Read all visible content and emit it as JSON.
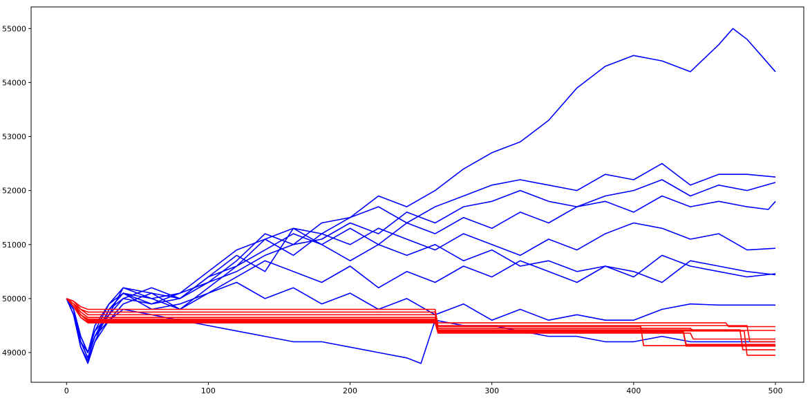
{
  "chart_data": {
    "type": "line",
    "title": "",
    "xlabel": "",
    "ylabel": "",
    "xlim": [
      -25,
      520
    ],
    "ylim": [
      48450,
      55400
    ],
    "grid": false,
    "legend": "none",
    "xticks": [
      {
        "value": 0,
        "label": "0"
      },
      {
        "value": 100,
        "label": "100"
      },
      {
        "value": 200,
        "label": "200"
      },
      {
        "value": 300,
        "label": "300"
      },
      {
        "value": 400,
        "label": "400"
      },
      {
        "value": 500,
        "label": "500"
      }
    ],
    "yticks": [
      {
        "value": 49000,
        "label": "49000"
      },
      {
        "value": 50000,
        "label": "50000"
      },
      {
        "value": 51000,
        "label": "51000"
      },
      {
        "value": 52000,
        "label": "52000"
      },
      {
        "value": 53000,
        "label": "53000"
      },
      {
        "value": 54000,
        "label": "54000"
      },
      {
        "value": 55000,
        "label": "55000"
      }
    ],
    "colors": {
      "blue": "#0000ff",
      "red": "#ff0000"
    },
    "series": [
      {
        "color": "#0000ff",
        "x": [
          0,
          5,
          10,
          15,
          20,
          30,
          40,
          60,
          80,
          100,
          120,
          140,
          160,
          180,
          200,
          220,
          240,
          260,
          280,
          300,
          320,
          340,
          360,
          380,
          400,
          420,
          440,
          460,
          470,
          480,
          490,
          500
        ],
        "y": [
          50000,
          49800,
          49300,
          49000,
          49300,
          49700,
          50200,
          50100,
          50000,
          50300,
          50700,
          51200,
          51000,
          51400,
          51500,
          51900,
          51700,
          52000,
          52400,
          52700,
          52900,
          53300,
          53900,
          54300,
          54500,
          54400,
          54200,
          54700,
          55000,
          54800,
          54500,
          54200
        ]
      },
      {
        "color": "#0000ff",
        "x": [
          0,
          5,
          10,
          15,
          20,
          30,
          40,
          60,
          80,
          100,
          120,
          140,
          160,
          180,
          200,
          220,
          240,
          260,
          280,
          300,
          320,
          340,
          360,
          380,
          400,
          420,
          440,
          460,
          480,
          500
        ],
        "y": [
          50000,
          49700,
          49200,
          48900,
          49300,
          49800,
          50100,
          49900,
          50000,
          50400,
          50600,
          51100,
          51300,
          51200,
          51500,
          51700,
          51400,
          51700,
          51900,
          52100,
          52200,
          52100,
          52000,
          52300,
          52200,
          52500,
          52100,
          52300,
          52300,
          52250
        ]
      },
      {
        "color": "#0000ff",
        "x": [
          0,
          5,
          10,
          15,
          20,
          30,
          40,
          60,
          80,
          100,
          120,
          140,
          160,
          180,
          200,
          220,
          240,
          260,
          280,
          300,
          320,
          340,
          360,
          380,
          400,
          420,
          440,
          460,
          480,
          500
        ],
        "y": [
          50000,
          49800,
          49200,
          49000,
          49400,
          49900,
          50200,
          50000,
          50100,
          50300,
          50500,
          50800,
          51000,
          51100,
          51400,
          51200,
          51600,
          51400,
          51700,
          51800,
          52000,
          51800,
          51700,
          51900,
          52000,
          52200,
          51900,
          52100,
          52000,
          52150
        ]
      },
      {
        "color": "#0000ff",
        "x": [
          0,
          5,
          10,
          15,
          20,
          30,
          40,
          60,
          80,
          100,
          120,
          140,
          160,
          180,
          200,
          220,
          240,
          260,
          280,
          300,
          320,
          340,
          360,
          380,
          400,
          420,
          440,
          460,
          480,
          495,
          500
        ],
        "y": [
          50000,
          49700,
          49100,
          48850,
          49200,
          49800,
          50100,
          50000,
          49800,
          50200,
          50600,
          50900,
          51200,
          51000,
          51300,
          51000,
          51400,
          51200,
          51500,
          51300,
          51600,
          51400,
          51700,
          51800,
          51600,
          51900,
          51700,
          51800,
          51700,
          51650,
          51800
        ]
      },
      {
        "color": "#0000ff",
        "x": [
          0,
          5,
          10,
          15,
          20,
          30,
          40,
          60,
          80,
          100,
          120,
          140,
          160,
          180,
          200,
          220,
          240,
          260,
          280,
          300,
          320,
          340,
          360,
          380,
          400,
          420,
          440,
          460,
          480,
          500
        ],
        "y": [
          50000,
          49800,
          49300,
          49000,
          49400,
          49700,
          50000,
          49900,
          50100,
          50500,
          50900,
          51100,
          50800,
          51200,
          51000,
          51300,
          51100,
          50900,
          51200,
          51000,
          50800,
          51100,
          50900,
          51200,
          51400,
          51300,
          51100,
          51200,
          50900,
          50930
        ]
      },
      {
        "color": "#0000ff",
        "x": [
          0,
          5,
          10,
          15,
          20,
          30,
          40,
          60,
          80,
          100,
          120,
          140,
          160,
          180,
          200,
          220,
          240,
          260,
          280,
          300,
          320,
          340,
          360,
          380,
          400,
          420,
          440,
          460,
          480,
          500
        ],
        "y": [
          50000,
          49700,
          49200,
          48900,
          49300,
          49800,
          50000,
          50200,
          50000,
          50400,
          50800,
          50500,
          51300,
          51000,
          50700,
          51000,
          50800,
          51000,
          50700,
          50900,
          50600,
          50700,
          50500,
          50600,
          50400,
          50800,
          50600,
          50500,
          50400,
          50460
        ]
      },
      {
        "color": "#0000ff",
        "x": [
          0,
          5,
          10,
          15,
          20,
          30,
          40,
          60,
          80,
          100,
          120,
          140,
          160,
          180,
          200,
          220,
          240,
          260,
          280,
          300,
          320,
          340,
          360,
          380,
          400,
          420,
          440,
          460,
          480,
          500
        ],
        "y": [
          50000,
          49800,
          49300,
          49000,
          49500,
          49900,
          50100,
          49800,
          49900,
          50100,
          50400,
          50700,
          50500,
          50300,
          50600,
          50200,
          50500,
          50300,
          50600,
          50400,
          50700,
          50500,
          50300,
          50600,
          50500,
          50300,
          50700,
          50600,
          50500,
          50440
        ]
      },
      {
        "color": "#0000ff",
        "x": [
          0,
          5,
          10,
          15,
          20,
          30,
          40,
          60,
          80,
          100,
          120,
          140,
          160,
          180,
          200,
          220,
          240,
          260,
          280,
          300,
          320,
          340,
          360,
          380,
          400,
          420,
          440,
          460,
          480,
          500
        ],
        "y": [
          50000,
          49700,
          49100,
          48800,
          49200,
          49600,
          49900,
          50100,
          49800,
          50100,
          50300,
          50000,
          50200,
          49900,
          50100,
          49800,
          50000,
          49700,
          49900,
          49600,
          49800,
          49600,
          49700,
          49600,
          49600,
          49800,
          49900,
          49880,
          49880,
          49880
        ]
      },
      {
        "color": "#0000ff",
        "x": [
          0,
          5,
          10,
          15,
          20,
          30,
          40,
          60,
          80,
          100,
          120,
          140,
          160,
          180,
          200,
          220,
          240,
          250,
          260,
          280,
          300,
          320,
          340,
          360,
          380,
          400,
          420,
          440,
          460,
          480,
          500
        ],
        "y": [
          50000,
          49800,
          49200,
          48900,
          49300,
          49600,
          49800,
          49700,
          49600,
          49500,
          49400,
          49300,
          49200,
          49200,
          49100,
          49000,
          48900,
          48800,
          49600,
          49500,
          49500,
          49400,
          49300,
          49300,
          49200,
          49200,
          49300,
          49200,
          49200,
          49200,
          49200
        ]
      },
      {
        "color": "#ff0000",
        "x": [
          0,
          5,
          10,
          15,
          20,
          100,
          200,
          260,
          262,
          300,
          400,
          480,
          482,
          500
        ],
        "y": [
          50000,
          49950,
          49850,
          49800,
          49800,
          49800,
          49800,
          49800,
          49500,
          49500,
          49500,
          49500,
          49200,
          49200
        ]
      },
      {
        "color": "#ff0000",
        "x": [
          0,
          5,
          10,
          15,
          20,
          100,
          200,
          260,
          262,
          300,
          400,
          435,
          437,
          500
        ],
        "y": [
          50000,
          49950,
          49800,
          49750,
          49750,
          49750,
          49750,
          49750,
          49400,
          49400,
          49400,
          49400,
          49150,
          49150
        ]
      },
      {
        "color": "#ff0000",
        "x": [
          0,
          5,
          10,
          15,
          20,
          100,
          200,
          260,
          262,
          300,
          400,
          465,
          467,
          500
        ],
        "y": [
          50000,
          49900,
          49800,
          49700,
          49700,
          49700,
          49700,
          49700,
          49550,
          49550,
          49550,
          49550,
          49480,
          49480
        ]
      },
      {
        "color": "#ff0000",
        "x": [
          0,
          5,
          10,
          15,
          20,
          100,
          200,
          260,
          262,
          300,
          400,
          405,
          407,
          500
        ],
        "y": [
          50000,
          49900,
          49750,
          49650,
          49650,
          49650,
          49650,
          49650,
          49480,
          49480,
          49480,
          49480,
          49130,
          49130
        ]
      },
      {
        "color": "#ff0000",
        "x": [
          0,
          5,
          10,
          15,
          20,
          100,
          200,
          260,
          262,
          300,
          400,
          440,
          442,
          500
        ],
        "y": [
          50000,
          49900,
          49700,
          49620,
          49620,
          49620,
          49620,
          49620,
          49450,
          49450,
          49450,
          49450,
          49410,
          49410
        ]
      },
      {
        "color": "#ff0000",
        "x": [
          0,
          5,
          10,
          15,
          20,
          100,
          200,
          260,
          262,
          300,
          400,
          475,
          477,
          500
        ],
        "y": [
          50000,
          49900,
          49700,
          49600,
          49600,
          49600,
          49600,
          49600,
          49420,
          49420,
          49420,
          49420,
          49050,
          49050
        ]
      },
      {
        "color": "#ff0000",
        "x": [
          0,
          5,
          10,
          15,
          20,
          100,
          200,
          260,
          262,
          300,
          400,
          478,
          480,
          500
        ],
        "y": [
          50000,
          49850,
          49700,
          49580,
          49580,
          49580,
          49580,
          49580,
          49400,
          49400,
          49400,
          49400,
          48950,
          48950
        ]
      },
      {
        "color": "#ff0000",
        "x": [
          0,
          5,
          10,
          15,
          20,
          100,
          200,
          260,
          262,
          300,
          400,
          435,
          437,
          500
        ],
        "y": [
          50000,
          49850,
          49650,
          49560,
          49560,
          49560,
          49560,
          49560,
          49380,
          49380,
          49380,
          49380,
          49120,
          49120
        ]
      },
      {
        "color": "#ff0000",
        "x": [
          0,
          5,
          10,
          15,
          20,
          100,
          200,
          260,
          262,
          300,
          400,
          440,
          442,
          500
        ],
        "y": [
          50000,
          49850,
          49650,
          49550,
          49550,
          49550,
          49550,
          49550,
          49360,
          49360,
          49360,
          49360,
          49250,
          49250
        ]
      }
    ]
  }
}
